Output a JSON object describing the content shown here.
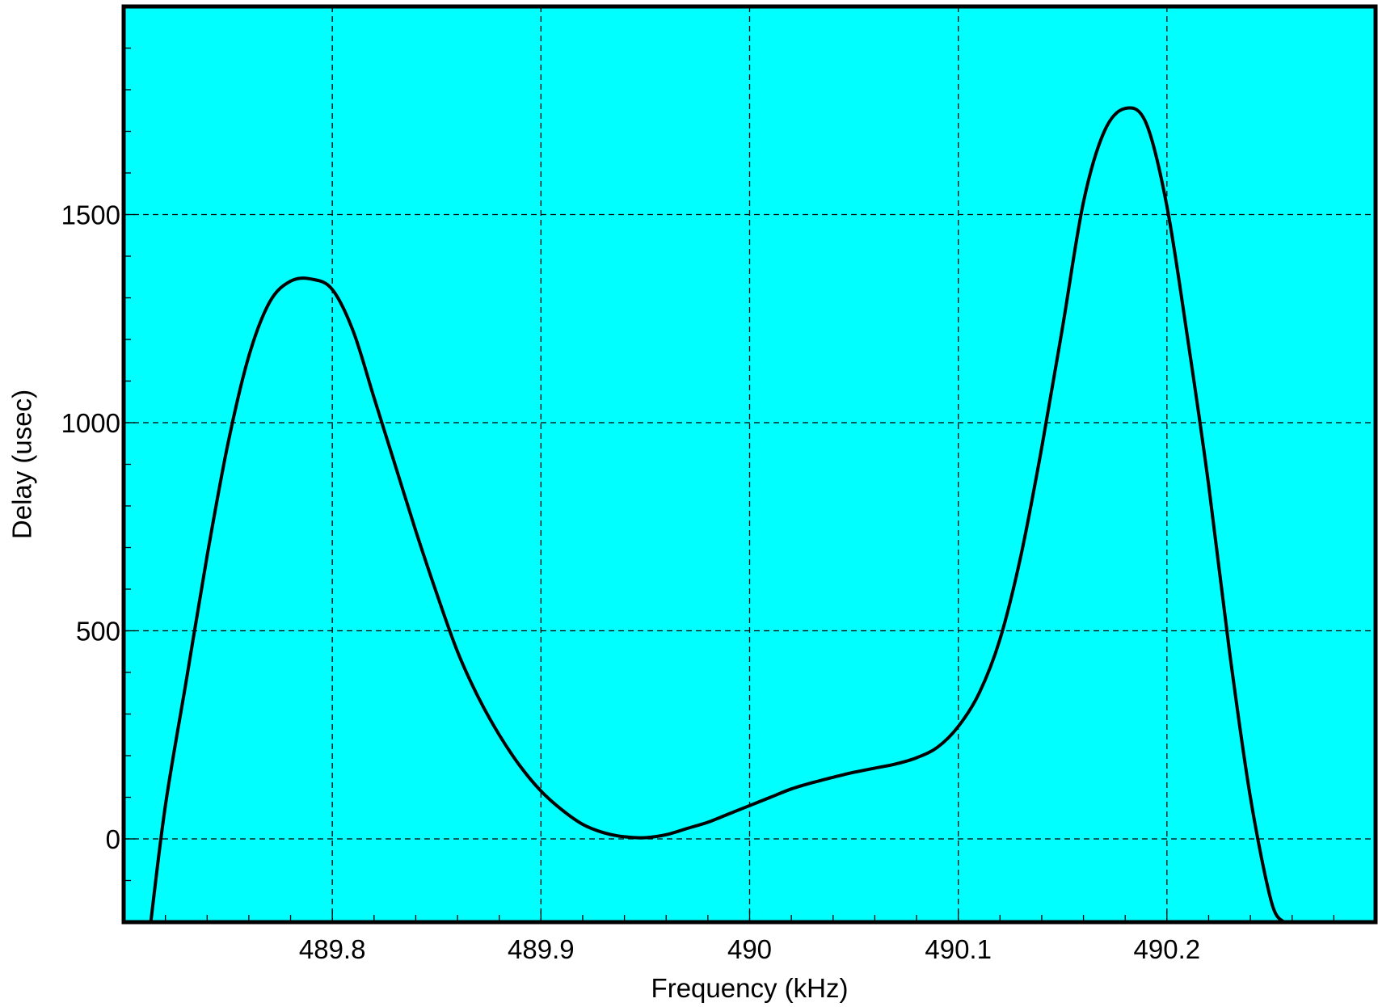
{
  "chart_data": {
    "type": "line",
    "title": "",
    "xlabel": "Frequency (kHz)",
    "ylabel": "Delay (usec)",
    "xlim": [
      489.7,
      490.3
    ],
    "ylim": [
      -200,
      2000
    ],
    "x_ticks": [
      489.8,
      489.9,
      490,
      490.1,
      490.2
    ],
    "x_tick_labels": [
      "489.8",
      "489.9",
      "490",
      "490.1",
      "490.2"
    ],
    "y_ticks": [
      0,
      500,
      1000,
      1500
    ],
    "y_tick_labels": [
      "0",
      "500",
      "1000",
      "1500"
    ],
    "grid": true,
    "legend": "none",
    "colors": {
      "plot_background": "#00ffff",
      "line": "#000000",
      "grid": "#000000",
      "frame": "#000000"
    },
    "series": [
      {
        "x": [
          489.713,
          489.72,
          489.73,
          489.74,
          489.75,
          489.76,
          489.77,
          489.78,
          489.79,
          489.8,
          489.81,
          489.82,
          489.83,
          489.84,
          489.85,
          489.86,
          489.87,
          489.88,
          489.89,
          489.9,
          489.91,
          489.92,
          489.93,
          489.94,
          489.95,
          489.96,
          489.97,
          489.98,
          489.99,
          490.0,
          490.01,
          490.02,
          490.03,
          490.04,
          490.05,
          490.06,
          490.07,
          490.08,
          490.09,
          490.1,
          490.11,
          490.12,
          490.13,
          490.14,
          490.15,
          490.16,
          490.17,
          490.18,
          490.19,
          490.2,
          490.21,
          490.22,
          490.23,
          490.24,
          490.25,
          490.256
        ],
        "y": [
          -200,
          80,
          380,
          680,
          950,
          1160,
          1290,
          1340,
          1345,
          1320,
          1220,
          1060,
          900,
          740,
          590,
          450,
          340,
          250,
          175,
          115,
          70,
          35,
          15,
          5,
          3,
          10,
          25,
          40,
          60,
          80,
          100,
          120,
          135,
          148,
          160,
          170,
          180,
          195,
          220,
          270,
          350,
          480,
          680,
          940,
          1230,
          1530,
          1700,
          1755,
          1720,
          1520,
          1200,
          850,
          450,
          100,
          -150,
          -200
        ]
      }
    ]
  }
}
